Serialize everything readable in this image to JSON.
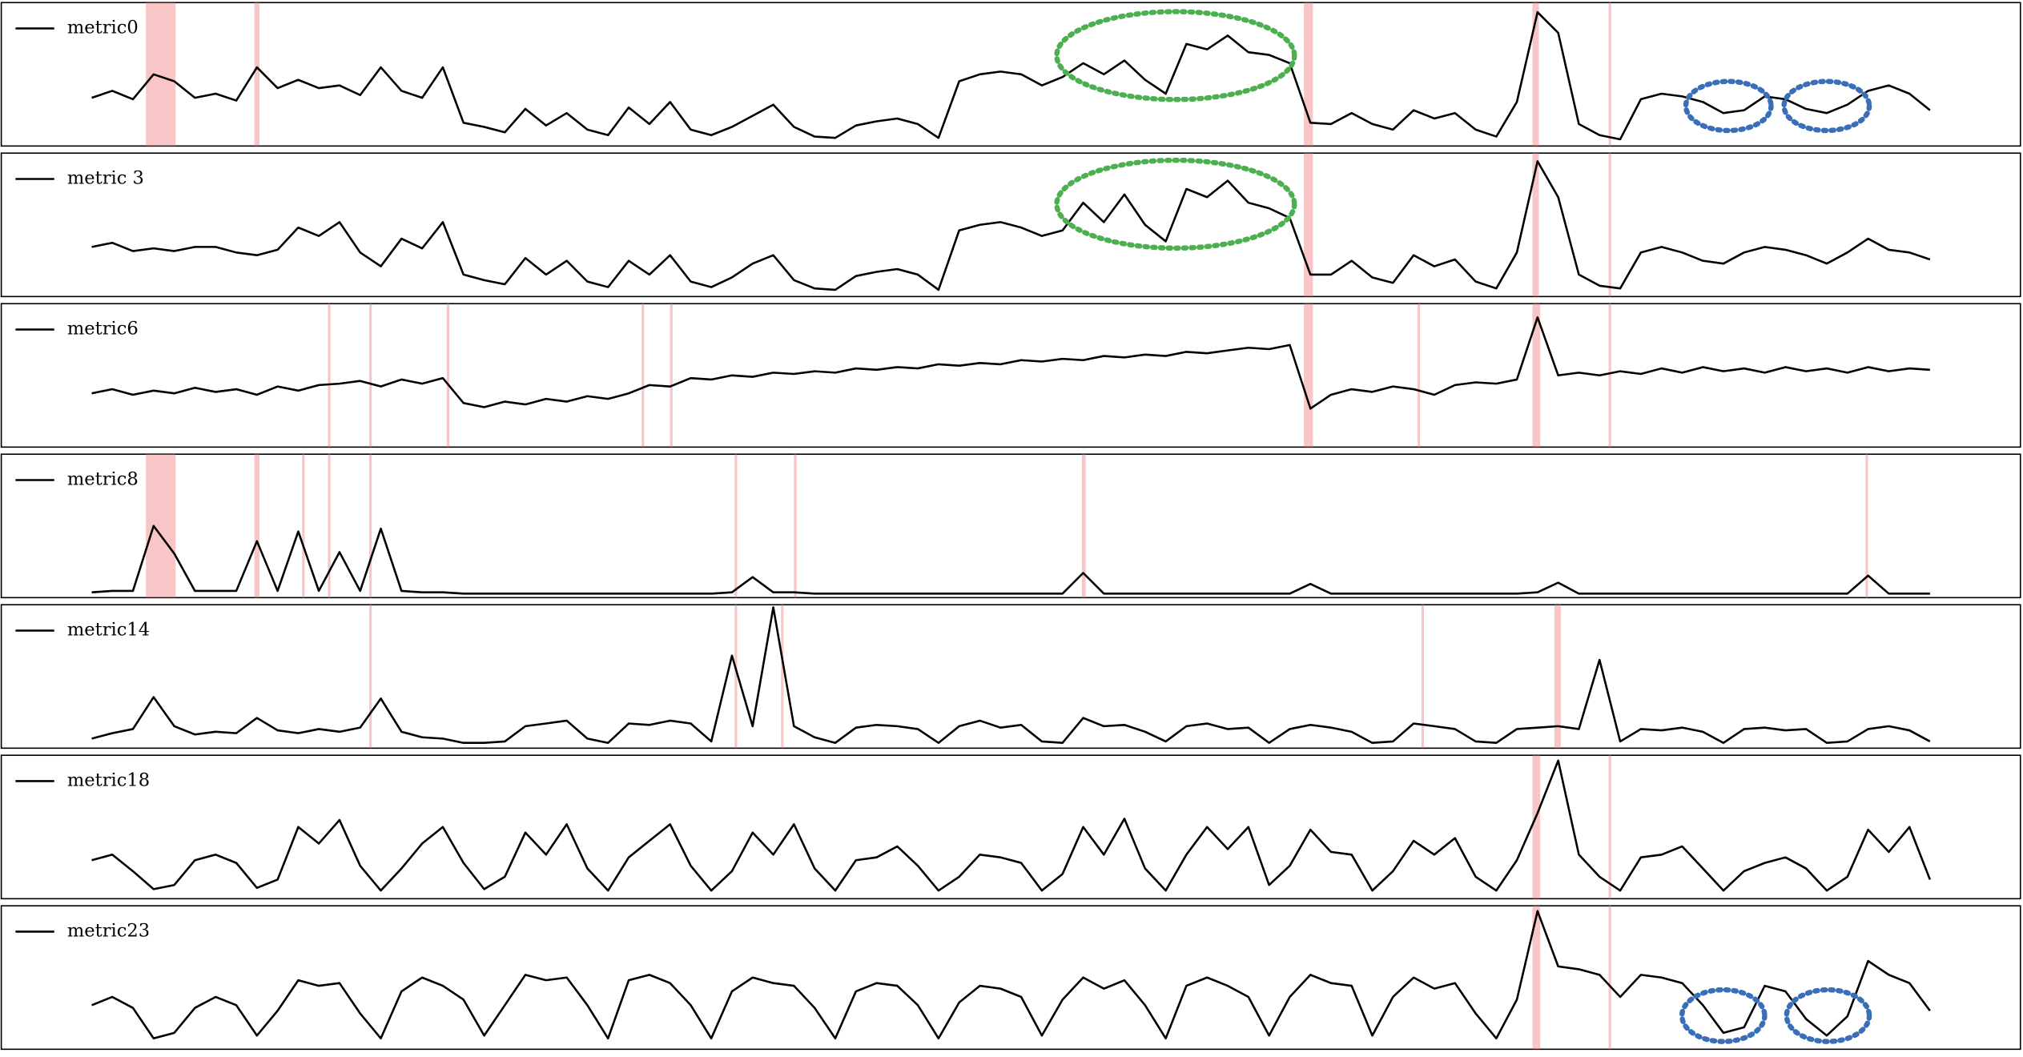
{
  "chart_data": {
    "type": "line",
    "legend": "upper left",
    "xlim": [
      0,
      1564
    ],
    "ylim": [
      0,
      100
    ],
    "highlight_color": "#f08080",
    "x": [
      70,
      86,
      102,
      118,
      134,
      150,
      166,
      182,
      198,
      214,
      230,
      246,
      262,
      278,
      294,
      310,
      326,
      342,
      358,
      374,
      390,
      406,
      422,
      438,
      454,
      470,
      486,
      502,
      518,
      534,
      550,
      566,
      582,
      598,
      614,
      630,
      646,
      662,
      678,
      694,
      710,
      726,
      742,
      758,
      774,
      790,
      806,
      822,
      838,
      854,
      870,
      886,
      902,
      918,
      934,
      950,
      966,
      982,
      998,
      1014,
      1030,
      1046,
      1062,
      1078,
      1094,
      1110,
      1126,
      1142,
      1158,
      1174,
      1190,
      1206,
      1222,
      1238,
      1254,
      1270,
      1286,
      1302,
      1318,
      1334,
      1350,
      1366,
      1382,
      1398,
      1414,
      1430,
      1446,
      1462,
      1478,
      1494
    ],
    "series": [
      {
        "name": "metric0",
        "color": "#000000",
        "highlights": [
          [
            112,
            135
          ],
          [
            196,
            200
          ],
          [
            1009,
            1016
          ],
          [
            1186,
            1191
          ],
          [
            1245,
            1247
          ]
        ],
        "values": [
          33,
          38,
          32,
          50,
          45,
          33,
          36,
          31,
          55,
          40,
          46,
          40,
          42,
          35,
          55,
          38,
          33,
          55,
          15,
          12,
          8,
          25,
          13,
          22,
          10,
          6,
          26,
          14,
          30,
          10,
          6,
          12,
          20,
          28,
          12,
          5,
          4,
          13,
          16,
          18,
          14,
          4,
          45,
          50,
          52,
          50,
          42,
          48,
          58,
          50,
          60,
          46,
          36,
          72,
          68,
          78,
          66,
          64,
          58,
          15,
          14,
          22,
          14,
          10,
          24,
          18,
          22,
          10,
          5,
          30,
          95,
          80,
          14,
          6,
          3,
          32,
          36,
          34,
          30,
          22,
          24,
          34,
          32,
          25,
          22,
          28,
          38,
          42,
          36,
          24
        ]
      },
      {
        "name": "metric 3",
        "color": "#000000",
        "highlights": [
          [
            1009,
            1016
          ],
          [
            1186,
            1191
          ],
          [
            1245,
            1247
          ]
        ],
        "values": [
          34,
          37,
          31,
          33,
          31,
          34,
          34,
          30,
          28,
          32,
          48,
          42,
          52,
          30,
          20,
          40,
          33,
          52,
          14,
          10,
          7,
          26,
          14,
          24,
          9,
          5,
          24,
          14,
          28,
          9,
          5,
          12,
          22,
          28,
          10,
          4,
          3,
          13,
          16,
          18,
          14,
          3,
          46,
          50,
          52,
          48,
          42,
          46,
          66,
          52,
          72,
          50,
          38,
          76,
          70,
          82,
          66,
          62,
          55,
          14,
          14,
          24,
          12,
          8,
          28,
          20,
          25,
          9,
          4,
          30,
          96,
          70,
          14,
          6,
          4,
          30,
          34,
          30,
          24,
          22,
          30,
          34,
          32,
          28,
          22,
          30,
          40,
          32,
          30,
          25
        ]
      },
      {
        "name": "metric6",
        "color": "#000000",
        "highlights": [
          [
            253,
            255
          ],
          [
            285,
            287
          ],
          [
            345,
            347
          ],
          [
            496,
            498
          ],
          [
            518,
            520
          ],
          [
            1009,
            1016
          ],
          [
            1097,
            1099
          ],
          [
            1186,
            1192
          ],
          [
            1245,
            1247
          ]
        ],
        "values": [
          37,
          40,
          36,
          39,
          37,
          41,
          38,
          40,
          36,
          42,
          39,
          43,
          44,
          46,
          42,
          47,
          44,
          48,
          30,
          27,
          31,
          29,
          33,
          31,
          35,
          33,
          37,
          43,
          42,
          48,
          47,
          50,
          49,
          52,
          51,
          53,
          52,
          55,
          54,
          56,
          55,
          58,
          57,
          59,
          58,
          61,
          60,
          62,
          61,
          64,
          63,
          65,
          64,
          67,
          66,
          68,
          70,
          69,
          72,
          26,
          36,
          40,
          38,
          42,
          40,
          36,
          43,
          45,
          44,
          47,
          92,
          50,
          52,
          50,
          53,
          51,
          55,
          52,
          56,
          53,
          55,
          52,
          56,
          53,
          55,
          52,
          56,
          53,
          55,
          54
        ]
      },
      {
        "name": "metric8",
        "color": "#000000",
        "highlights": [
          [
            112,
            135
          ],
          [
            196,
            200
          ],
          [
            233,
            235
          ],
          [
            253,
            255
          ],
          [
            285,
            287
          ],
          [
            568,
            570
          ],
          [
            614,
            616
          ],
          [
            837,
            840
          ],
          [
            1444,
            1446
          ]
        ],
        "values": [
          2,
          3,
          3,
          50,
          30,
          3,
          3,
          3,
          39,
          3,
          46,
          3,
          31,
          3,
          48,
          3,
          2,
          2,
          1,
          1,
          1,
          1,
          1,
          1,
          1,
          1,
          1,
          1,
          1,
          1,
          1,
          2,
          13,
          2,
          2,
          1,
          1,
          1,
          1,
          1,
          1,
          1,
          1,
          1,
          1,
          1,
          1,
          1,
          16,
          1,
          1,
          1,
          1,
          1,
          1,
          1,
          1,
          1,
          1,
          8,
          1,
          1,
          1,
          1,
          1,
          1,
          1,
          1,
          1,
          1,
          2,
          9,
          1,
          1,
          1,
          1,
          1,
          1,
          1,
          1,
          1,
          1,
          1,
          1,
          1,
          1,
          14,
          1,
          1,
          1
        ]
      },
      {
        "name": "metric14",
        "color": "#000000",
        "highlights": [
          [
            285,
            287
          ],
          [
            568,
            570
          ],
          [
            604,
            606
          ],
          [
            1100,
            1102
          ],
          [
            1203,
            1208
          ]
        ],
        "values": [
          5,
          9,
          12,
          35,
          14,
          8,
          10,
          9,
          20,
          11,
          9,
          12,
          10,
          13,
          34,
          10,
          6,
          5,
          2,
          2,
          3,
          14,
          16,
          18,
          5,
          2,
          16,
          15,
          18,
          16,
          3,
          65,
          14,
          100,
          14,
          6,
          2,
          13,
          15,
          14,
          12,
          2,
          14,
          18,
          13,
          15,
          3,
          2,
          20,
          14,
          15,
          10,
          3,
          14,
          16,
          12,
          13,
          2,
          12,
          15,
          13,
          10,
          2,
          3,
          16,
          14,
          12,
          3,
          2,
          12,
          13,
          14,
          12,
          62,
          3,
          12,
          11,
          13,
          10,
          2,
          12,
          13,
          11,
          12,
          2,
          3,
          12,
          14,
          11,
          3
        ]
      },
      {
        "name": "metric18",
        "color": "#000000",
        "highlights": [
          [
            1186,
            1192
          ],
          [
            1245,
            1247
          ]
        ],
        "values": [
          26,
          30,
          18,
          5,
          8,
          26,
          30,
          24,
          6,
          12,
          50,
          38,
          55,
          22,
          4,
          20,
          38,
          50,
          24,
          5,
          14,
          46,
          30,
          52,
          20,
          4,
          28,
          40,
          52,
          22,
          4,
          18,
          46,
          30,
          52,
          20,
          4,
          26,
          28,
          36,
          22,
          4,
          14,
          30,
          28,
          24,
          4,
          16,
          50,
          30,
          56,
          20,
          4,
          30,
          50,
          34,
          50,
          8,
          22,
          48,
          32,
          30,
          4,
          18,
          40,
          30,
          42,
          14,
          4,
          26,
          60,
          98,
          30,
          14,
          4,
          28,
          30,
          36,
          20,
          4,
          18,
          24,
          28,
          20,
          4,
          14,
          48,
          32,
          50,
          12
        ]
      },
      {
        "name": "metric23",
        "color": "#000000",
        "highlights": [
          [
            1186,
            1192
          ],
          [
            1245,
            1247
          ]
        ],
        "values": [
          30,
          36,
          28,
          6,
          10,
          28,
          36,
          30,
          8,
          26,
          48,
          44,
          46,
          24,
          6,
          40,
          50,
          44,
          34,
          8,
          30,
          52,
          48,
          50,
          30,
          6,
          48,
          52,
          46,
          30,
          6,
          40,
          50,
          46,
          44,
          28,
          6,
          40,
          46,
          44,
          30,
          6,
          32,
          44,
          42,
          36,
          8,
          34,
          50,
          42,
          48,
          30,
          6,
          44,
          50,
          44,
          36,
          8,
          36,
          52,
          46,
          44,
          8,
          36,
          50,
          42,
          46,
          24,
          6,
          34,
          98,
          58,
          56,
          52,
          36,
          52,
          50,
          46,
          30,
          10,
          14,
          44,
          40,
          20,
          8,
          22,
          62,
          52,
          46,
          26
        ]
      }
    ]
  }
}
